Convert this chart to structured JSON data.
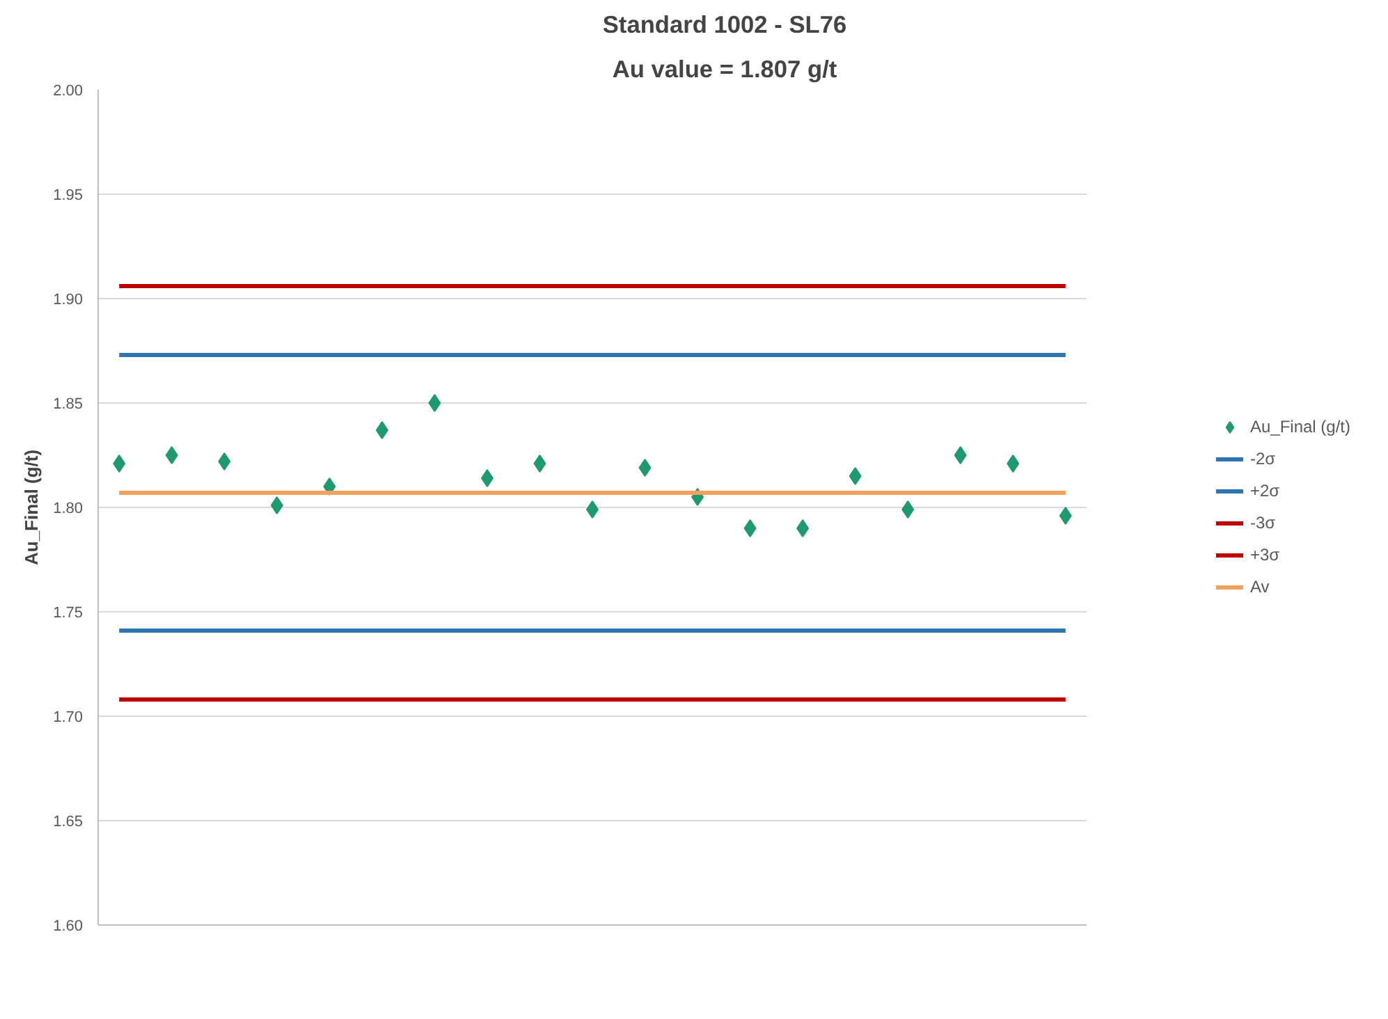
{
  "chart_data": {
    "type": "scatter",
    "title": "Standard 1002 - SL76",
    "subtitle": "Au value = 1.807 g/t",
    "ylabel": "Au_Final (g/t)",
    "categories": [
      null,
      null,
      null,
      null,
      null,
      null,
      null,
      null,
      null,
      null,
      null,
      null,
      null,
      null,
      null,
      null,
      null,
      null,
      null
    ],
    "series": [
      {
        "name": "Au_Final (g/t)",
        "marker": "diamond",
        "color": "#1f9a6e",
        "values": [
          1.821,
          1.825,
          1.822,
          1.801,
          1.81,
          1.837,
          1.85,
          1.814,
          1.821,
          1.799,
          1.819,
          1.805,
          1.79,
          1.79,
          1.815,
          1.799,
          1.825,
          1.821,
          1.796
        ]
      },
      {
        "name": "-2σ",
        "type": "line",
        "color": "#2e75b6",
        "values": [
          1.741,
          1.741,
          1.741,
          1.741,
          1.741,
          1.741,
          1.741,
          1.741,
          1.741,
          1.741,
          1.741,
          1.741,
          1.741,
          1.741,
          1.741,
          1.741,
          1.741,
          1.741,
          1.741
        ]
      },
      {
        "name": "+2σ",
        "type": "line",
        "color": "#2e75b6",
        "values": [
          1.873,
          1.873,
          1.873,
          1.873,
          1.873,
          1.873,
          1.873,
          1.873,
          1.873,
          1.873,
          1.873,
          1.873,
          1.873,
          1.873,
          1.873,
          1.873,
          1.873,
          1.873,
          1.873
        ]
      },
      {
        "name": "-3σ",
        "type": "line",
        "color": "#c00000",
        "values": [
          1.708,
          1.708,
          1.708,
          1.708,
          1.708,
          1.708,
          1.708,
          1.708,
          1.708,
          1.708,
          1.708,
          1.708,
          1.708,
          1.708,
          1.708,
          1.708,
          1.708,
          1.708,
          1.708
        ]
      },
      {
        "name": "+3σ",
        "type": "line",
        "color": "#c00000",
        "values": [
          1.906,
          1.906,
          1.906,
          1.906,
          1.906,
          1.906,
          1.906,
          1.906,
          1.906,
          1.906,
          1.906,
          1.906,
          1.906,
          1.906,
          1.906,
          1.906,
          1.906,
          1.906,
          1.906
        ]
      },
      {
        "name": "Av",
        "type": "line",
        "color": "#f4a15d",
        "values": [
          1.807,
          1.807,
          1.807,
          1.807,
          1.807,
          1.807,
          1.807,
          1.807,
          1.807,
          1.807,
          1.807,
          1.807,
          1.807,
          1.807,
          1.807,
          1.807,
          1.807,
          1.807,
          1.807
        ]
      }
    ],
    "ylim": [
      1.6,
      2.0
    ],
    "yticks": [
      {
        "value": 1.6,
        "label": "1.60"
      },
      {
        "value": 1.65,
        "label": "1.65"
      },
      {
        "value": 1.7,
        "label": "1.70"
      },
      {
        "value": 1.75,
        "label": "1.75"
      },
      {
        "value": 1.8,
        "label": "1.80"
      },
      {
        "value": 1.85,
        "label": "1.85"
      },
      {
        "value": 1.9,
        "label": "1.90"
      },
      {
        "value": 1.95,
        "label": "1.95"
      },
      {
        "value": 2.0,
        "label": "2.00"
      }
    ],
    "grid": "y",
    "legend": "right",
    "line_style": "solid"
  }
}
